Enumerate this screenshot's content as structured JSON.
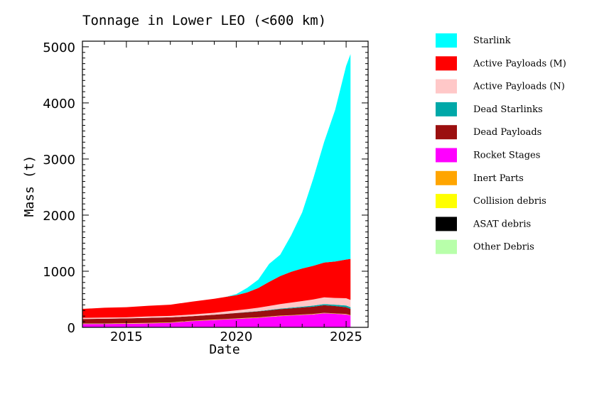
{
  "chart_data": {
    "type": "area",
    "title": "Tonnage in Lower LEO (<600 km)",
    "xlabel": "Date",
    "ylabel": "Mass (t)",
    "xlim": [
      2013.0,
      2026.0
    ],
    "ylim": [
      0,
      5100
    ],
    "x_ticks": [
      2015,
      2020,
      2025
    ],
    "y_ticks": [
      0,
      1000,
      2000,
      3000,
      4000,
      5000
    ],
    "legend_position": "right, outside plot",
    "x": [
      2013.0,
      2014.0,
      2015.0,
      2016.0,
      2017.0,
      2018.0,
      2019.0,
      2019.5,
      2020.0,
      2020.5,
      2021.0,
      2021.5,
      2022.0,
      2022.5,
      2023.0,
      2023.5,
      2024.0,
      2024.5,
      2025.0,
      2025.2
    ],
    "series": [
      {
        "name": "Rocket Stages",
        "color": "#ff00ff",
        "values": [
          60,
          60,
          65,
          70,
          80,
          110,
          130,
          140,
          150,
          160,
          170,
          185,
          200,
          210,
          220,
          230,
          250,
          240,
          230,
          210
        ]
      },
      {
        "name": "Inert Parts",
        "color": "#ffa500",
        "values": [
          5,
          5,
          5,
          5,
          5,
          5,
          5,
          5,
          5,
          5,
          5,
          5,
          5,
          5,
          5,
          5,
          5,
          5,
          5,
          5
        ]
      },
      {
        "name": "Collision debris",
        "color": "#ffff00",
        "values": [
          2,
          2,
          2,
          2,
          2,
          2,
          2,
          2,
          2,
          2,
          2,
          2,
          2,
          2,
          2,
          2,
          2,
          2,
          2,
          2
        ]
      },
      {
        "name": "ASAT debris",
        "color": "#000000",
        "values": [
          1,
          1,
          1,
          1,
          1,
          1,
          1,
          1,
          1,
          1,
          1,
          1,
          1,
          1,
          1,
          1,
          1,
          1,
          1,
          1
        ]
      },
      {
        "name": "Other Debris",
        "color": "#b8ffaa",
        "values": [
          1,
          1,
          1,
          1,
          1,
          1,
          1,
          1,
          1,
          1,
          1,
          1,
          1,
          1,
          1,
          1,
          1,
          1,
          1,
          1
        ]
      },
      {
        "name": "Dead Payloads",
        "color": "#9b0f0f",
        "values": [
          80,
          85,
          85,
          90,
          90,
          80,
          85,
          90,
          95,
          100,
          105,
          110,
          115,
          120,
          125,
          130,
          135,
          130,
          120,
          110
        ]
      },
      {
        "name": "Dead Starlinks",
        "color": "#00a8a8",
        "values": [
          0,
          0,
          0,
          0,
          0,
          0,
          0,
          2,
          3,
          5,
          6,
          8,
          10,
          12,
          15,
          18,
          20,
          25,
          30,
          30
        ]
      },
      {
        "name": "Active Payloads (N)",
        "color": "#ffc8c8",
        "values": [
          20,
          20,
          20,
          25,
          25,
          30,
          35,
          40,
          45,
          50,
          60,
          70,
          80,
          90,
          100,
          110,
          120,
          120,
          130,
          130
        ]
      },
      {
        "name": "Active Payloads (M)",
        "color": "#ff0000",
        "values": [
          160,
          175,
          180,
          190,
          200,
          230,
          250,
          260,
          270,
          300,
          350,
          430,
          500,
          550,
          580,
          600,
          620,
          650,
          690,
          730
        ]
      },
      {
        "name": "Starlink",
        "color": "#00ffff",
        "values": [
          0,
          0,
          0,
          0,
          0,
          0,
          0,
          0,
          20,
          80,
          150,
          320,
          380,
          650,
          1000,
          1550,
          2150,
          2700,
          3450,
          3650
        ]
      }
    ],
    "legend": [
      {
        "label": "Starlink",
        "color": "#00ffff"
      },
      {
        "label": "Active Payloads (M)",
        "color": "#ff0000"
      },
      {
        "label": "Active Payloads (N)",
        "color": "#ffc8c8"
      },
      {
        "label": "Dead Starlinks",
        "color": "#00a8a8"
      },
      {
        "label": "Dead Payloads",
        "color": "#9b0f0f"
      },
      {
        "label": "Rocket Stages",
        "color": "#ff00ff"
      },
      {
        "label": "Inert Parts",
        "color": "#ffa500"
      },
      {
        "label": "Collision debris",
        "color": "#ffff00"
      },
      {
        "label": "ASAT debris",
        "color": "#000000"
      },
      {
        "label": "Other Debris",
        "color": "#b8ffaa"
      }
    ]
  }
}
